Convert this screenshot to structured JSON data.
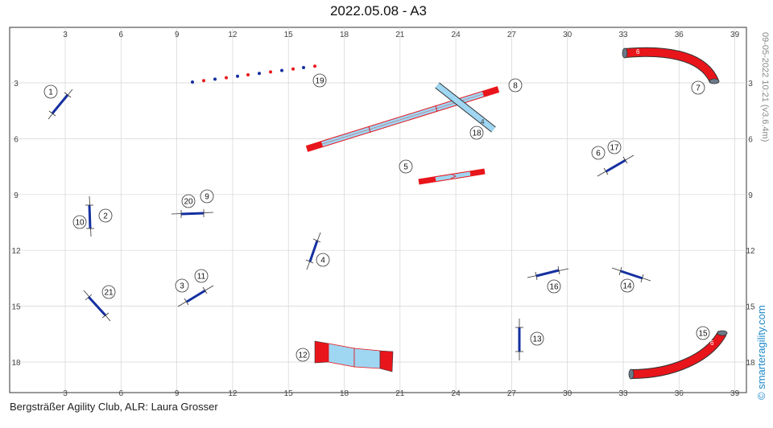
{
  "title": "2022.05.08 - A3",
  "footer_text": "Bergsträßer Agility Club, ALR: Laura Grosser",
  "timestamp_text": "09-05-2022 10:21  (v3.6.4m)",
  "brand_text": "© smarteragility.com",
  "colors": {
    "jump_bar": "#1530a0",
    "tube": "#e8151b",
    "plank": "#9fd6f2",
    "plank_end": "#e8151b",
    "grid": "#cccccc",
    "brand": "#1e88c8"
  },
  "axes": {
    "x_ticks": [
      "3",
      "6",
      "9",
      "12",
      "15",
      "18",
      "21",
      "24",
      "27",
      "30",
      "33",
      "36",
      "39"
    ],
    "y_ticks": [
      "3",
      "6",
      "9",
      "12",
      "15",
      "18"
    ]
  },
  "obstacles": [
    {
      "kind": "jump",
      "labels": [
        "1"
      ]
    },
    {
      "kind": "jump",
      "labels": [
        "10",
        "2"
      ]
    },
    {
      "kind": "jump",
      "labels": [
        "3",
        "11"
      ]
    },
    {
      "kind": "jump",
      "labels": [
        "4"
      ]
    },
    {
      "kind": "table",
      "labels": [
        "5"
      ]
    },
    {
      "kind": "jump",
      "labels": [
        "6",
        "17"
      ]
    },
    {
      "kind": "tube",
      "labels": [
        "7"
      ],
      "tube_mark": "6"
    },
    {
      "kind": "dogwalk",
      "labels": [
        "8"
      ]
    },
    {
      "kind": "jump",
      "labels": [
        "20",
        "9"
      ]
    },
    {
      "kind": "tunnel",
      "labels": [
        "12"
      ]
    },
    {
      "kind": "jump",
      "labels": [
        "13"
      ]
    },
    {
      "kind": "jump",
      "labels": [
        "14"
      ]
    },
    {
      "kind": "tube",
      "labels": [
        "15"
      ],
      "tube_mark": "6"
    },
    {
      "kind": "jump",
      "labels": [
        "16"
      ]
    },
    {
      "kind": "seesaw",
      "labels": [
        "18"
      ],
      "seesaw_mark": "4"
    },
    {
      "kind": "weave",
      "labels": [
        "19"
      ]
    },
    {
      "kind": "jump",
      "labels": [
        "21"
      ]
    }
  ]
}
